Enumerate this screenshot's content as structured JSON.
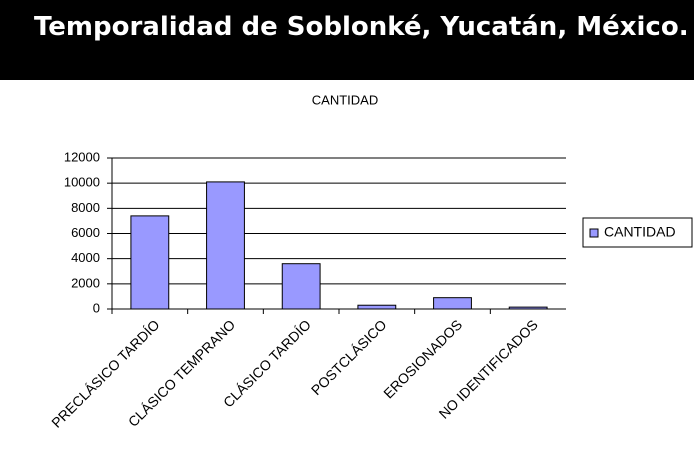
{
  "header": {
    "title": "Temporalidad de Soblonké, Yucatán, México."
  },
  "chart_data": {
    "type": "bar",
    "title": "CANTIDAD",
    "categories": [
      "PRECLÁSICO TARDÍO",
      "CLÁSICO TEMPRANO",
      "CLÁSICO TARDÍO",
      "POSTCLÁSICO",
      "EROSIONADOS",
      "NO IDENTIFICADOS"
    ],
    "series": [
      {
        "name": "CANTIDAD",
        "color": "#9999ff",
        "values": [
          7400,
          10100,
          3600,
          300,
          900,
          150
        ]
      }
    ],
    "ylim": [
      0,
      12000
    ],
    "yticks": [
      0,
      2000,
      4000,
      6000,
      8000,
      10000,
      12000
    ],
    "grid": true,
    "legend": "right"
  }
}
